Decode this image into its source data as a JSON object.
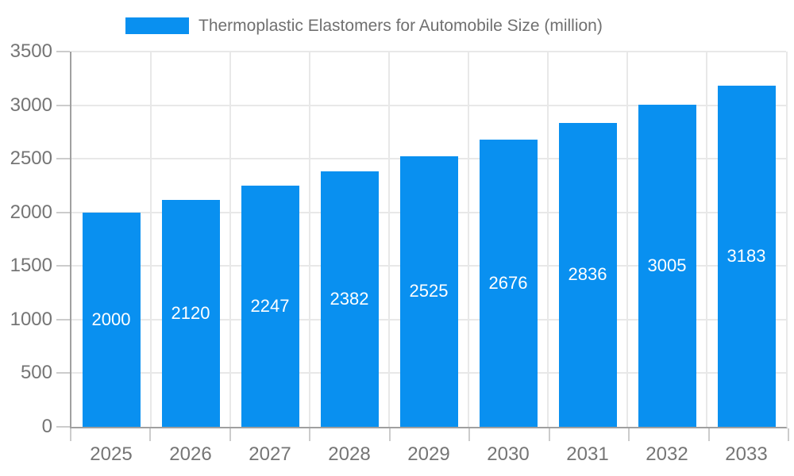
{
  "chart_data": {
    "type": "bar",
    "title": "Thermoplastic Elastomers for Automobile Size (million)",
    "categories": [
      "2025",
      "2026",
      "2027",
      "2028",
      "2029",
      "2030",
      "2031",
      "2032",
      "2033"
    ],
    "values": [
      2000,
      2120,
      2247,
      2382,
      2525,
      2676,
      2836,
      3005,
      3183
    ],
    "series": [
      {
        "name": "Thermoplastic Elastomers for Automobile Size (million)",
        "values": [
          2000,
          2120,
          2247,
          2382,
          2525,
          2676,
          2836,
          3005,
          3183
        ]
      }
    ],
    "xlabel": "",
    "ylabel": "",
    "ylim": [
      0,
      3500
    ],
    "y_ticks": [
      0,
      500,
      1000,
      1500,
      2000,
      2500,
      3000,
      3500
    ],
    "grid": true,
    "legend_position": "top",
    "value_labels": "inside-center",
    "colors": {
      "bar": "#0990F0",
      "grid": "#e8e8e8",
      "axis_line": "#a0a0a0",
      "tick": "#cccccc",
      "axis_text": "#757575",
      "title_text": "#707070",
      "value_label_text": "#ffffff"
    }
  }
}
